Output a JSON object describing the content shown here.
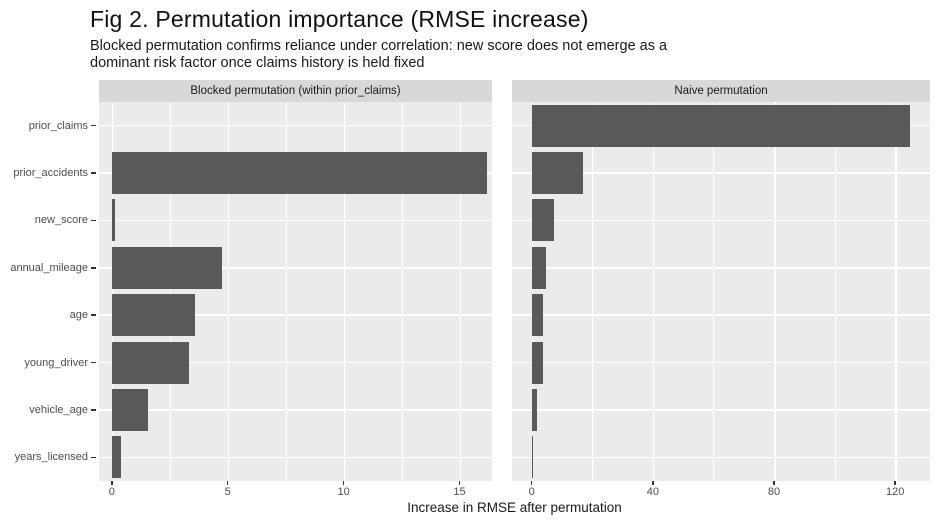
{
  "chart_data": {
    "type": "bar",
    "orientation": "horizontal",
    "faceted": true,
    "title": "Fig 2. Permutation importance (RMSE increase)",
    "subtitle_lines": [
      "Blocked permutation confirms reliance under correlation: new score does not emerge as a",
      "dominant risk factor once claims history is held fixed"
    ],
    "xlabel": "Increase in RMSE after permutation",
    "categories_top_to_bottom": [
      "prior_claims",
      "prior_accidents",
      "new_score",
      "annual_mileage",
      "age",
      "young_driver",
      "vehicle_age",
      "years_licensed"
    ],
    "facets": [
      {
        "label": "Blocked permutation (within prior_claims)",
        "values": [
          0,
          16.2,
          0.15,
          4.75,
          3.6,
          3.35,
          1.55,
          0.4
        ],
        "x_ticks": [
          0,
          5,
          10,
          15
        ],
        "x_minor_ticks": [
          2.5,
          7.5,
          12.5
        ],
        "xlim": [
          -0.55,
          16.4
        ]
      },
      {
        "label": "Naive permutation",
        "values": [
          125,
          16.9,
          7.4,
          4.7,
          3.7,
          3.7,
          1.75,
          0.4
        ],
        "x_ticks": [
          0,
          40,
          80,
          120
        ],
        "x_minor_ticks": [
          20,
          60,
          100
        ],
        "xlim": [
          -6.5,
          131.5
        ]
      }
    ],
    "legend": "none",
    "grid": "on",
    "style": {
      "bar_color": "#595959",
      "panel_bg": "#ebebeb",
      "strip_bg": "#d8d8d8",
      "grid_color": "#ffffff",
      "axis_text_color": "#4d4d4d"
    }
  }
}
